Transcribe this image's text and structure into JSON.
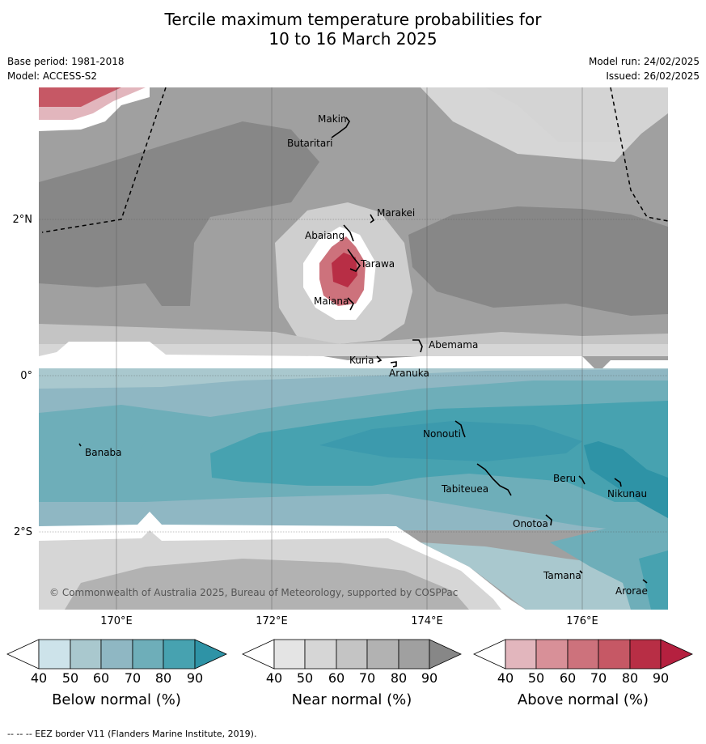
{
  "title_line1": "Tercile maximum temperature probabilities for",
  "title_line2": "10 to 16 March 2025",
  "meta_left": {
    "base_period": "Base period: 1981-2018",
    "model": "Model: ACCESS-S2"
  },
  "meta_right": {
    "model_run": "Model run: 24/02/2025",
    "issued": "Issued: 26/02/2025"
  },
  "map": {
    "x_ticks": [
      "170°E",
      "172°E",
      "174°E",
      "176°E"
    ],
    "y_ticks": [
      "2°N",
      "0°",
      "2°S"
    ],
    "copyright": "© Commonwealth of Australia 2025, Bureau of Meteorology, supported by COSPPac",
    "places": [
      "Makin",
      "Butaritari",
      "Marakei",
      "Abaiang",
      "Tarawa",
      "Maiana",
      "Abemama",
      "Kuria",
      "Aranuka",
      "Banaba",
      "Nonouti",
      "Beru",
      "Nikunau",
      "Tabiteuea",
      "Onotoa",
      "Tamana",
      "Arorae"
    ]
  },
  "colorbars": [
    {
      "label": "Below normal (%)",
      "ticks": [
        "40",
        "50",
        "60",
        "70",
        "80",
        "90"
      ],
      "colors": [
        "#cde3ea",
        "#a9c8ce",
        "#8fb7c3",
        "#6eaeb9",
        "#47a2b0",
        "#2e93a6"
      ]
    },
    {
      "label": "Near normal (%)",
      "ticks": [
        "40",
        "50",
        "60",
        "70",
        "80",
        "90"
      ],
      "colors": [
        "#e4e4e4",
        "#d6d6d6",
        "#c4c4c4",
        "#b2b2b2",
        "#a0a0a0",
        "#878787"
      ]
    },
    {
      "label": "Above normal (%)",
      "ticks": [
        "40",
        "50",
        "60",
        "70",
        "80",
        "90"
      ],
      "colors": [
        "#e2b6bd",
        "#d89098",
        "#cd727c",
        "#c65865",
        "#b82e45",
        "#b5203f"
      ]
    }
  ],
  "footnote": "--  --  -- EEZ border V11 (Flanders Marine Institute, 2019)."
}
